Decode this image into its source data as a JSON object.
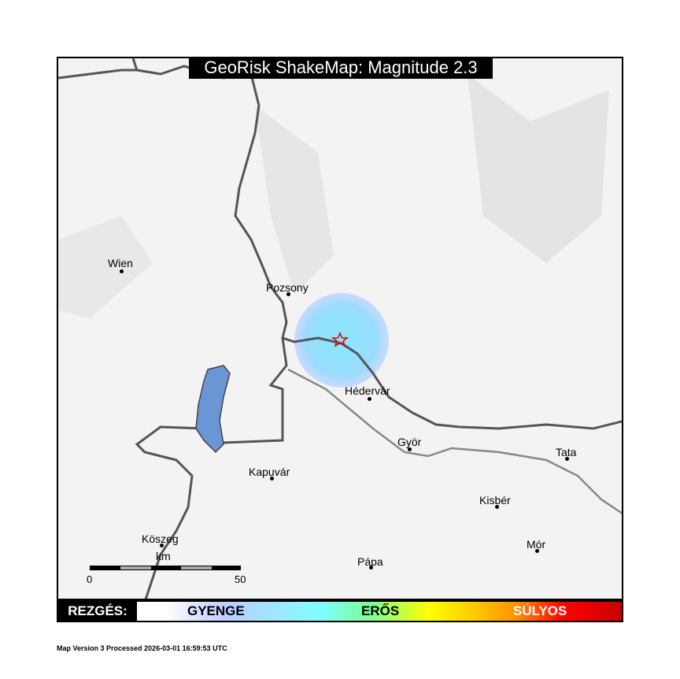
{
  "title": "GeoRisk ShakeMap: Magnitude 2.3",
  "cities": [
    {
      "name": "Wien"
    },
    {
      "name": "Pozsony"
    },
    {
      "name": "Hédervár"
    },
    {
      "name": "Györ"
    },
    {
      "name": "Tata"
    },
    {
      "name": "Kapuvár"
    },
    {
      "name": "Kisbér"
    },
    {
      "name": "Köszeg"
    },
    {
      "name": "Mór"
    },
    {
      "name": "Pápa"
    }
  ],
  "scale": {
    "unit": "km",
    "start": "0",
    "end": "50"
  },
  "legend": {
    "label": "REZGÉS:",
    "low": "GYENGE",
    "mid": "ERŐS",
    "high": "SÚLYOS"
  },
  "footer": "Map Version 3 Processed 2026-03-01 16:59:53 UTC",
  "colors": {
    "epicenter": "#d01010",
    "lake": "#6a96d6",
    "shaking": "#90e0ff",
    "border": "#555555"
  }
}
